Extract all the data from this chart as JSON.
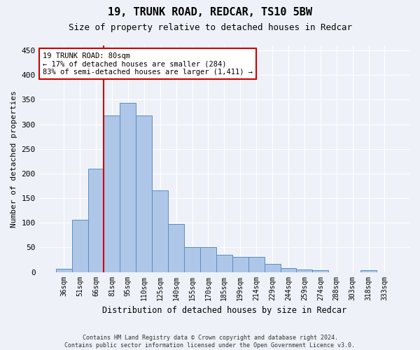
{
  "title1": "19, TRUNK ROAD, REDCAR, TS10 5BW",
  "title2": "Size of property relative to detached houses in Redcar",
  "xlabel": "Distribution of detached houses by size in Redcar",
  "ylabel": "Number of detached properties",
  "categories": [
    "36sqm",
    "51sqm",
    "66sqm",
    "81sqm",
    "95sqm",
    "110sqm",
    "125sqm",
    "140sqm",
    "155sqm",
    "170sqm",
    "185sqm",
    "199sqm",
    "214sqm",
    "229sqm",
    "244sqm",
    "259sqm",
    "274sqm",
    "288sqm",
    "303sqm",
    "318sqm",
    "333sqm"
  ],
  "values": [
    7,
    106,
    210,
    318,
    343,
    318,
    165,
    97,
    50,
    50,
    35,
    30,
    30,
    16,
    8,
    5,
    4,
    0,
    0,
    4,
    0
  ],
  "bar_color": "#aec6e8",
  "bar_edge_color": "#5a8fc0",
  "annotation_text_line1": "19 TRUNK ROAD: 80sqm",
  "annotation_text_line2": "← 17% of detached houses are smaller (284)",
  "annotation_text_line3": "83% of semi-detached houses are larger (1,411) →",
  "annotation_box_color": "#ffffff",
  "annotation_box_edge": "#cc0000",
  "vline_color": "#cc0000",
  "footer1": "Contains HM Land Registry data © Crown copyright and database right 2024.",
  "footer2": "Contains public sector information licensed under the Open Government Licence v3.0.",
  "background_color": "#eef2f8",
  "plot_bg_color": "#eef2f8",
  "ylim": [
    0,
    460
  ],
  "grid_color": "#ffffff"
}
